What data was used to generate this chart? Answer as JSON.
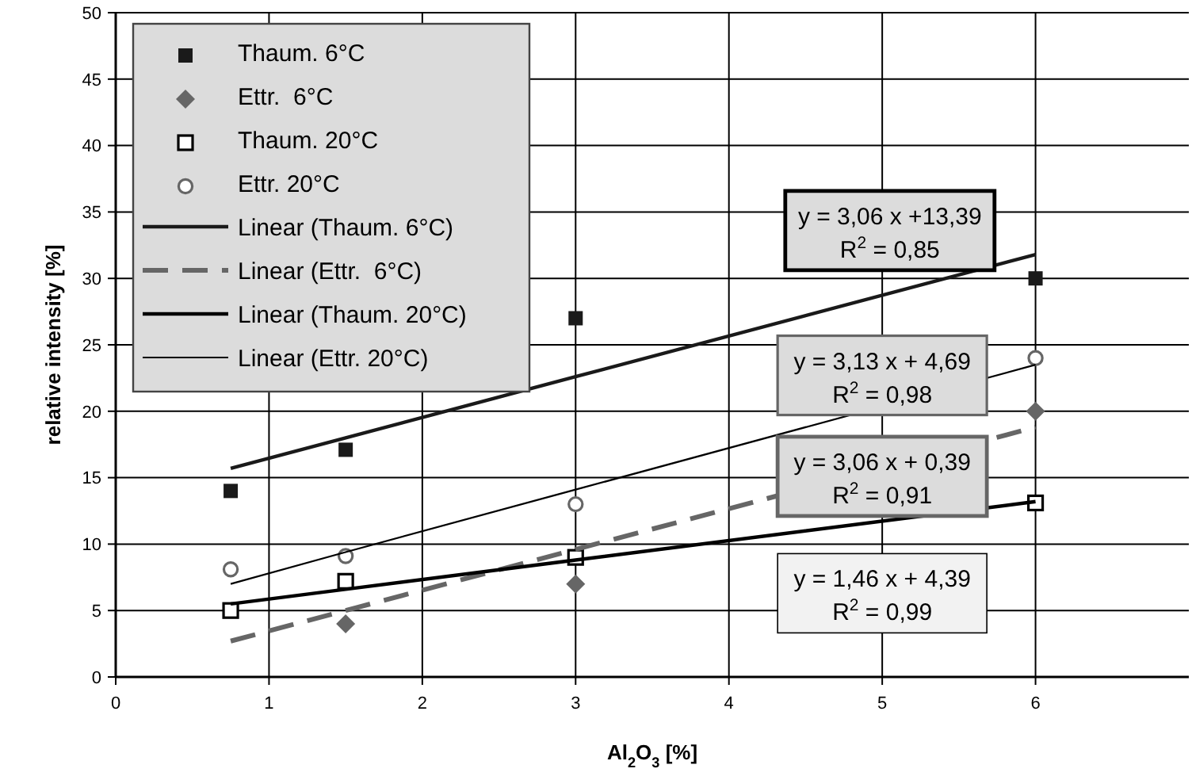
{
  "chart_data": {
    "type": "scatter",
    "xlabel": "Al$_{2}$O$_{3}$ [%]",
    "ylabel": "relative intensity [%]",
    "x": [
      0.75,
      1.5,
      3,
      6
    ],
    "series": [
      {
        "name": "Thaum. 6°C",
        "color": "#1a1a1a",
        "marker": "square",
        "values": [
          14,
          17.1,
          27,
          30
        ]
      },
      {
        "name": "Ettr.  6°C",
        "color": "#666666",
        "marker": "diamond",
        "values": [
          null,
          4,
          7,
          20
        ]
      },
      {
        "name": "Thaum. 20°C",
        "color": "#000000",
        "marker": "square",
        "values": [
          5,
          7.2,
          9,
          13.1
        ]
      },
      {
        "name": "Ettr. 20°C",
        "color": "#666666",
        "marker": "circle",
        "values": [
          8.1,
          9.1,
          13,
          24
        ]
      },
      {
        "name": "Linear (Thaum. 6°C)",
        "type": "line",
        "marker": "none",
        "color": "#1a1a1a",
        "values": [
          15.7,
          18,
          22.6,
          31.8
        ]
      },
      {
        "name": "Linear (Ettr.  6°C)",
        "type": "line",
        "marker": "none",
        "color": "#666666",
        "line_style": "dashed",
        "values": [
          2.7,
          5,
          9.6,
          18.8
        ]
      },
      {
        "name": "Linear (Thaum. 20°C)",
        "type": "line",
        "marker": "none",
        "color": "#000000",
        "values": [
          5.5,
          6.6,
          8.8,
          13.2
        ]
      },
      {
        "name": "Linear (Ettr. 20°C)",
        "type": "line",
        "marker": "none",
        "color": "#000000",
        "values": [
          7,
          9.4,
          14.1,
          23.5
        ]
      }
    ],
    "annotations": [
      "y = 3,06 x +13,39\nR$^{2}$ = 0,85",
      "y = 3,13 x +  4,69\nR$^{2}$ = 0,98",
      "y = 3,06 x +  0,39\nR$^{2}$ = 0,91",
      "y =  1,46 x +  4,39\nR$^{2}$ = 0,99"
    ],
    "xlim": [
      0,
      7
    ],
    "xticks": [
      0,
      1,
      2,
      3,
      4,
      5,
      6
    ],
    "ylim": [
      0,
      50
    ],
    "yticks": [
      0,
      5,
      10,
      15,
      20,
      25,
      30,
      35,
      40,
      45,
      50
    ],
    "grid": true,
    "legend": "top left",
    "line_style": "solid"
  }
}
